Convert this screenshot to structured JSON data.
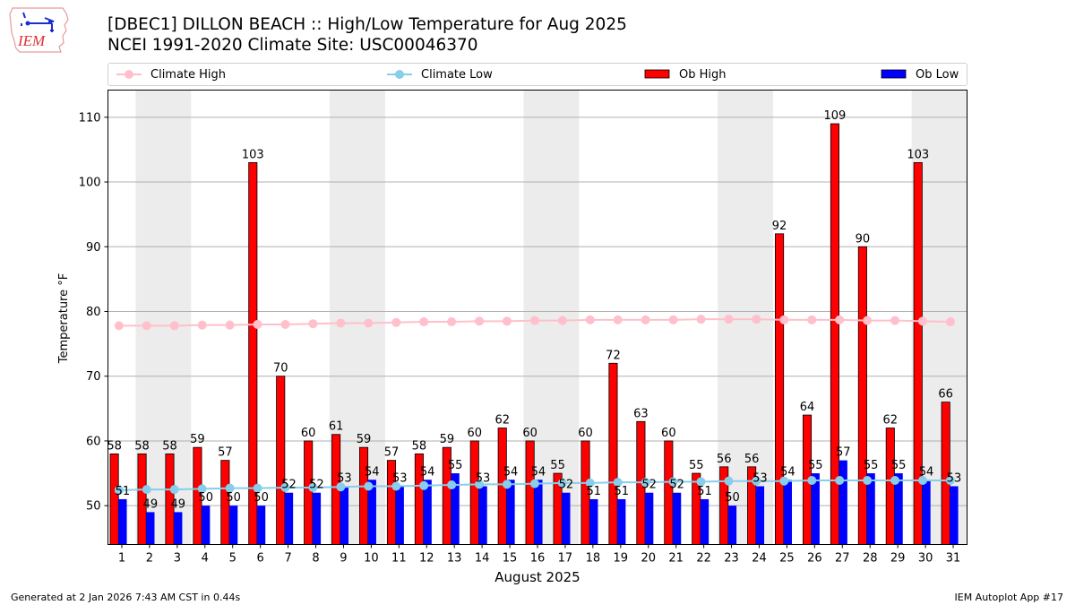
{
  "header": {
    "title_line1": "[DBEC1] DILLON BEACH :: High/Low Temperature for Aug 2025",
    "title_line2": "NCEI 1991-2020 Climate Site: USC00046370",
    "logo_text": "IEM"
  },
  "legend": {
    "items": [
      {
        "label": "Climate High",
        "kind": "line-marker",
        "color": "#ffc0cb"
      },
      {
        "label": "Climate Low",
        "kind": "line-marker",
        "color": "#87ceeb"
      },
      {
        "label": "Ob High",
        "kind": "bar",
        "color": "#ff0000"
      },
      {
        "label": "Ob Low",
        "kind": "bar",
        "color": "#0000ff"
      }
    ]
  },
  "footer": {
    "left": "Generated at 2 Jan 2026 7:43 AM CST in 0.44s",
    "right": "IEM Autoplot App #17"
  },
  "chart_data": {
    "type": "bar",
    "title": "[DBEC1] DILLON BEACH :: High/Low Temperature for Aug 2025",
    "subtitle": "NCEI 1991-2020 Climate Site: USC00046370",
    "xlabel": "August 2025",
    "ylabel": "Temperature °F",
    "x": [
      1,
      2,
      3,
      4,
      5,
      6,
      7,
      8,
      9,
      10,
      11,
      12,
      13,
      14,
      15,
      16,
      17,
      18,
      19,
      20,
      21,
      22,
      23,
      24,
      25,
      26,
      27,
      28,
      29,
      30,
      31
    ],
    "xlim": [
      0.5,
      31.5
    ],
    "ylim": [
      44,
      114.2
    ],
    "yticks": [
      50,
      60,
      70,
      80,
      90,
      100,
      110
    ],
    "grid": "horizontal",
    "legend_position": "top",
    "weekend_shading": [
      [
        2,
        3
      ],
      [
        9,
        10
      ],
      [
        16,
        17
      ],
      [
        23,
        24
      ],
      [
        30,
        31
      ]
    ],
    "shade_color": "#ececec",
    "series": [
      {
        "name": "Ob High",
        "kind": "bar",
        "color": "#ff0000",
        "values": [
          58,
          58,
          58,
          59,
          57,
          103,
          70,
          60,
          61,
          59,
          57,
          58,
          59,
          60,
          62,
          60,
          55,
          60,
          72,
          63,
          60,
          55,
          56,
          56,
          92,
          64,
          109,
          90,
          62,
          103,
          66
        ]
      },
      {
        "name": "Ob Low",
        "kind": "bar",
        "color": "#0000ff",
        "values": [
          51,
          49,
          49,
          50,
          50,
          50,
          52,
          52,
          53,
          54,
          53,
          54,
          55,
          53,
          54,
          54,
          52,
          51,
          51,
          52,
          52,
          51,
          50,
          53,
          54,
          55,
          57,
          55,
          55,
          54,
          53
        ]
      },
      {
        "name": "Climate High",
        "kind": "line",
        "color": "#ffc0cb",
        "values": [
          77.8,
          77.8,
          77.8,
          77.9,
          77.9,
          78.0,
          78.0,
          78.1,
          78.2,
          78.2,
          78.3,
          78.4,
          78.4,
          78.5,
          78.5,
          78.6,
          78.6,
          78.7,
          78.7,
          78.7,
          78.7,
          78.8,
          78.8,
          78.8,
          78.7,
          78.7,
          78.7,
          78.6,
          78.6,
          78.5,
          78.4
        ]
      },
      {
        "name": "Climate Low",
        "kind": "line",
        "color": "#87ceeb",
        "values": [
          52.4,
          52.5,
          52.5,
          52.6,
          52.7,
          52.7,
          52.8,
          52.8,
          52.9,
          53.0,
          53.0,
          53.1,
          53.2,
          53.3,
          53.3,
          53.4,
          53.5,
          53.5,
          53.6,
          53.6,
          53.7,
          53.7,
          53.8,
          53.8,
          53.8,
          53.9,
          53.9,
          53.9,
          53.9,
          53.9,
          53.9
        ]
      }
    ]
  }
}
